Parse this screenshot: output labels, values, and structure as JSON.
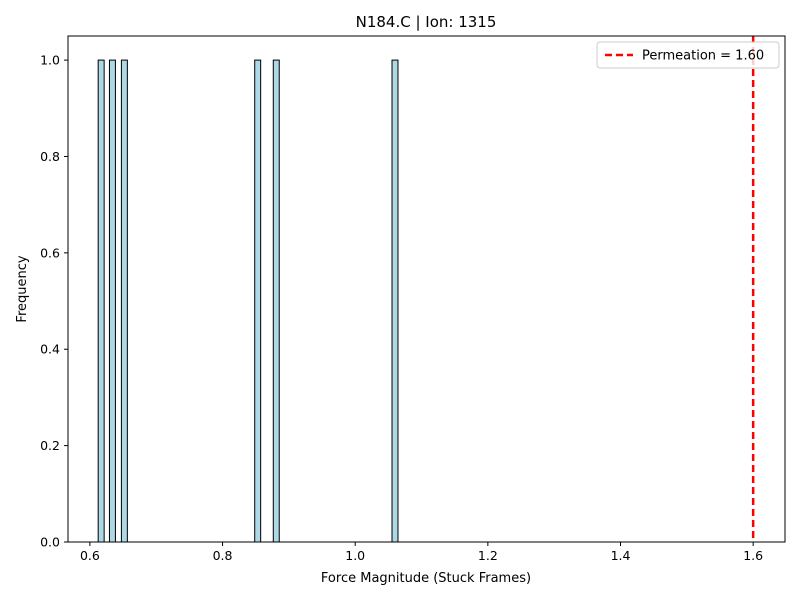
{
  "chart_data": {
    "type": "bar",
    "title": "N184.C | Ion: 1315",
    "xlabel": "Force Magnitude (Stuck Frames)",
    "ylabel": "Frequency",
    "xlim": [
      0.567,
      1.648
    ],
    "ylim": [
      0,
      1.05
    ],
    "xticks": [
      "0.6",
      "0.8",
      "1.0",
      "1.2",
      "1.4",
      "1.6"
    ],
    "yticks": [
      "0.0",
      "0.2",
      "0.4",
      "0.6",
      "0.8",
      "1.0"
    ],
    "bin_width": 0.009,
    "bars": [
      {
        "x": 0.617,
        "value": 1
      },
      {
        "x": 0.634,
        "value": 1
      },
      {
        "x": 0.652,
        "value": 1
      },
      {
        "x": 0.853,
        "value": 1
      },
      {
        "x": 0.881,
        "value": 1
      },
      {
        "x": 1.06,
        "value": 1
      }
    ],
    "bar_color": "#add8e6",
    "bar_edge_color": "#000000",
    "reference_line": {
      "x": 1.6,
      "label": "Permeation = 1.60",
      "color": "#ff0000",
      "style": "dashed"
    },
    "legend_position": "top-right",
    "grid": false
  }
}
